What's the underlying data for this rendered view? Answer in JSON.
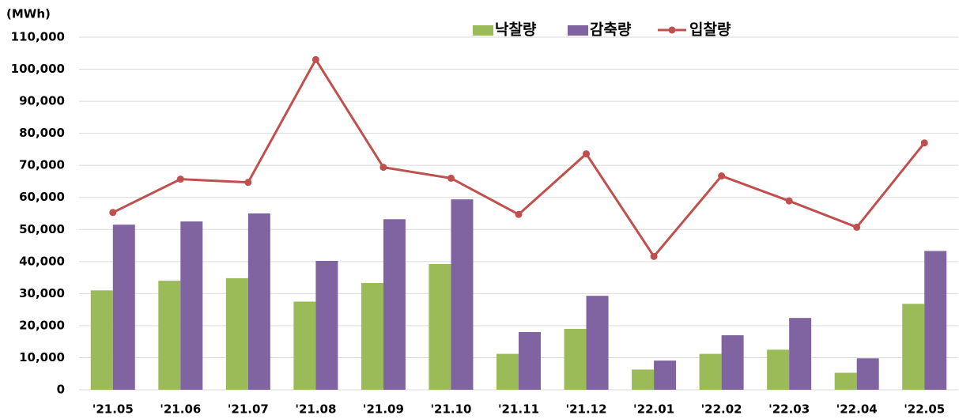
{
  "chart_data": {
    "type": "bar_line",
    "y_label": "(MWh)",
    "categories": [
      "'21.05",
      "'21.06",
      "'21.07",
      "'21.08",
      "'21.09",
      "'21.10",
      "'21.11",
      "'21.12",
      "'22.01",
      "'22.02",
      "'22.03",
      "'22.04",
      "'22.05"
    ],
    "series": [
      {
        "name": "낙찰량",
        "color": "#9bbb59",
        "kind": "bar",
        "values": [
          31000,
          34000,
          34800,
          27500,
          33300,
          39200,
          11200,
          19000,
          6300,
          11200,
          12500,
          5300,
          26800
        ]
      },
      {
        "name": "감축량",
        "color": "#8064a2",
        "kind": "bar",
        "values": [
          51500,
          52500,
          55000,
          40200,
          53200,
          59400,
          18000,
          29300,
          9100,
          17000,
          22400,
          9800,
          43300
        ]
      },
      {
        "name": "입찰량",
        "color": "#c0504d",
        "kind": "line",
        "values": [
          55300,
          65700,
          64700,
          103000,
          69400,
          66000,
          54700,
          73600,
          41600,
          66700,
          58900,
          50700,
          77000
        ]
      }
    ],
    "ylim": [
      0,
      110000
    ],
    "yticks": [
      0,
      {
        "value": 10000,
        "label": "10,000"
      },
      {
        "value": 20000,
        "label": "20,000"
      },
      {
        "value": 30000,
        "label": "30,000"
      },
      {
        "value": 40000,
        "label": "40,000"
      },
      {
        "value": 50000,
        "label": "50,000"
      },
      {
        "value": 60000,
        "label": "60,000"
      },
      {
        "value": 70000,
        "label": "70,000"
      },
      {
        "value": 80000,
        "label": "80,000"
      },
      {
        "value": 90000,
        "label": "90,000"
      },
      {
        "value": 100000,
        "label": "100,000"
      },
      {
        "value": 110000,
        "label": "110,000"
      }
    ],
    "grid": true,
    "legend": "top"
  }
}
